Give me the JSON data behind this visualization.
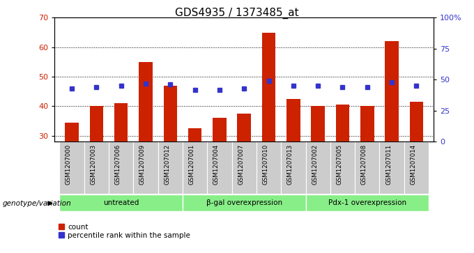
{
  "title": "GDS4935 / 1373485_at",
  "samples": [
    "GSM1207000",
    "GSM1207003",
    "GSM1207006",
    "GSM1207009",
    "GSM1207012",
    "GSM1207001",
    "GSM1207004",
    "GSM1207007",
    "GSM1207010",
    "GSM1207013",
    "GSM1207002",
    "GSM1207005",
    "GSM1207008",
    "GSM1207011",
    "GSM1207014"
  ],
  "bar_values": [
    34.5,
    40.0,
    41.0,
    55.0,
    47.0,
    32.5,
    36.0,
    37.5,
    65.0,
    42.5,
    40.0,
    40.5,
    40.0,
    62.0,
    41.5
  ],
  "percentile_values": [
    43,
    44,
    45,
    47,
    46,
    42,
    42,
    43,
    49,
    45,
    45,
    44,
    44,
    48,
    45
  ],
  "bar_color": "#cc2200",
  "percentile_color": "#3333cc",
  "ylim_left": [
    28,
    70
  ],
  "ylim_right": [
    0,
    100
  ],
  "yticks_left": [
    30,
    40,
    50,
    60,
    70
  ],
  "yticks_right": [
    0,
    25,
    50,
    75,
    100
  ],
  "ytick_labels_right": [
    "0",
    "25",
    "50",
    "75",
    "100%"
  ],
  "groups": [
    {
      "label": "untreated",
      "start": 0,
      "end": 5
    },
    {
      "label": "β-gal overexpression",
      "start": 5,
      "end": 10
    },
    {
      "label": "Pdx-1 overexpression",
      "start": 10,
      "end": 15
    }
  ],
  "group_color": "#88ee88",
  "xlabel_left": "genotype/variation",
  "legend_count_label": "count",
  "legend_percentile_label": "percentile rank within the sample",
  "sample_bg_color": "#cccccc",
  "bar_width": 0.55
}
